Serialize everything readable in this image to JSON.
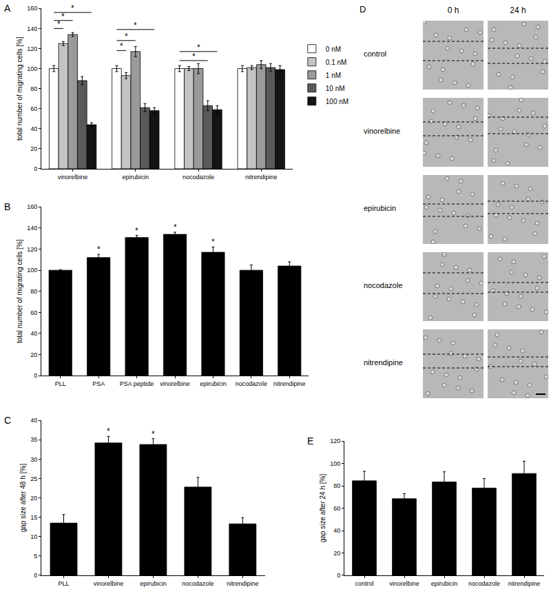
{
  "chart_data": [
    {
      "title": "A",
      "type": "bar",
      "categories": [
        "vinorelbine",
        "epirubicin",
        "nocodazole",
        "nitrendipine"
      ],
      "series": [
        {
          "name": "0 nM",
          "color": "#ffffff",
          "values": [
            100,
            100,
            100,
            100
          ],
          "errors": [
            3,
            3,
            3,
            3
          ]
        },
        {
          "name": "0.1 nM",
          "color": "#c4c4c4",
          "values": [
            125,
            93,
            100,
            101
          ],
          "errors": [
            2,
            3,
            2,
            2
          ]
        },
        {
          "name": "1 nM",
          "color": "#9a9a9a",
          "values": [
            134,
            117,
            100,
            104
          ],
          "errors": [
            2,
            5,
            5,
            4
          ]
        },
        {
          "name": "10 nM",
          "color": "#5a5a5a",
          "values": [
            88,
            61,
            63,
            101
          ],
          "errors": [
            4,
            4,
            5,
            4
          ]
        },
        {
          "name": "100 nM",
          "color": "#141414",
          "values": [
            44,
            58,
            59,
            99
          ],
          "errors": [
            2,
            3,
            4,
            4
          ]
        }
      ],
      "y_label": "total number of migrating cells [%]",
      "ylim": [
        0,
        160
      ],
      "yticks": [
        0,
        20,
        40,
        60,
        80,
        100,
        120,
        140,
        160
      ],
      "grid": false,
      "legend": "right",
      "annotations": [
        {
          "category": "vinorelbine",
          "from": "0 nM",
          "to": "0.1 nM",
          "y": 140,
          "text": "*"
        },
        {
          "category": "vinorelbine",
          "from": "0 nM",
          "to": "1 nM",
          "y": 148,
          "text": "*"
        },
        {
          "category": "vinorelbine",
          "from": "0 nM",
          "to": "100 nM",
          "y": 156,
          "text": "*"
        },
        {
          "category": "epirubicin",
          "from": "0 nM",
          "to": "0.1 nM",
          "y": 118,
          "text": "*"
        },
        {
          "category": "epirubicin",
          "from": "0 nM",
          "to": "1 nM",
          "y": 128,
          "text": "*"
        },
        {
          "category": "epirubicin",
          "from": "0 nM",
          "to": "100 nM",
          "y": 139,
          "text": "*"
        },
        {
          "category": "nocodazole",
          "from": "0 nM",
          "to": "10 nM",
          "y": 108,
          "text": "*"
        },
        {
          "category": "nocodazole",
          "from": "0 nM",
          "to": "100 nM",
          "y": 117,
          "text": "*"
        }
      ]
    },
    {
      "title": "B",
      "type": "bar",
      "categories": [
        "PLL",
        "PSA",
        "PSA peptide",
        "vinorelbine",
        "epirubicin",
        "nocodazole",
        "nitrendipine"
      ],
      "values": [
        100,
        112,
        131,
        134,
        117,
        100,
        104
      ],
      "errors": [
        0.5,
        3,
        2,
        2,
        5,
        5,
        4
      ],
      "color": "#000000",
      "y_label": "total number of migrating cells [%]",
      "ylim": [
        0,
        160
      ],
      "yticks": [
        0,
        20,
        40,
        60,
        80,
        100,
        120,
        140,
        160
      ],
      "grid": false,
      "annotations": [
        {
          "category": "PSA",
          "text": "*"
        },
        {
          "category": "PSA peptide",
          "text": "*"
        },
        {
          "category": "vinorelbine",
          "text": "*"
        },
        {
          "category": "epirubicin",
          "text": "*"
        }
      ]
    },
    {
      "title": "C",
      "type": "bar",
      "categories": [
        "PLL",
        "vinorelbine",
        "epirubicin",
        "nocodazole",
        "nitrendipine"
      ],
      "values": [
        13.5,
        34.2,
        33.8,
        22.8,
        13.3
      ],
      "errors": [
        2.2,
        1.7,
        1.5,
        2.5,
        1.6
      ],
      "color": "#000000",
      "y_label": "gap size after 48 h [%]",
      "ylim": [
        0,
        40
      ],
      "yticks": [
        0,
        5,
        10,
        15,
        20,
        25,
        30,
        35,
        40
      ],
      "grid": false,
      "annotations": [
        {
          "category": "vinorelbine",
          "text": "*"
        },
        {
          "category": "epirubicin",
          "text": "*"
        }
      ]
    },
    {
      "title": "D",
      "type": "image_grid",
      "columns": [
        "0 h",
        "24 h"
      ],
      "rows": [
        "control",
        "vinorelbine",
        "epirubicin",
        "nocodazole",
        "nitrendipine"
      ]
    },
    {
      "title": "E",
      "type": "bar",
      "categories": [
        "control",
        "vinorelbine",
        "epirubicin",
        "nocodazole",
        "nitrendipine"
      ],
      "values": [
        84.5,
        68.5,
        83.5,
        78,
        91
      ],
      "errors": [
        8.5,
        4.5,
        9,
        8.5,
        11
      ],
      "color": "#000000",
      "y_label": "gap size after 24 h [%]",
      "ylim": [
        0,
        120
      ],
      "yticks": [
        0,
        20,
        40,
        60,
        80,
        100,
        120
      ],
      "grid": false
    }
  ]
}
